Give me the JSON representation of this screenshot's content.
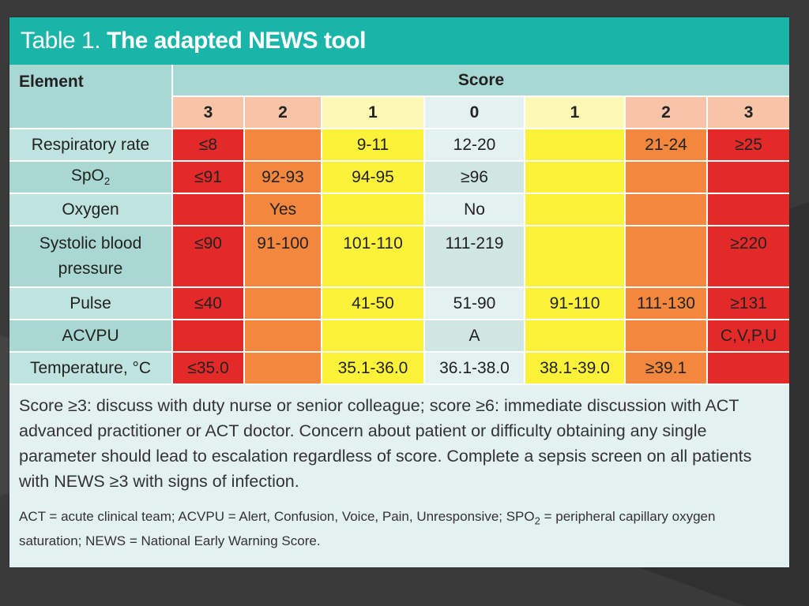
{
  "title": {
    "prefix": "Table 1.",
    "main": "The adapted NEWS tool"
  },
  "headers": {
    "element": "Element",
    "score": "Score",
    "scores": [
      "3",
      "2",
      "1",
      "0",
      "1",
      "2",
      "3"
    ]
  },
  "rows": [
    {
      "label": "Respiratory rate",
      "cells": [
        "≤8",
        "",
        "9-11",
        "12-20",
        "",
        "21-24",
        "≥25"
      ]
    },
    {
      "label_main": "SpO",
      "label_sub": "2",
      "cells": [
        "≤91",
        "92-93",
        "94-95",
        "≥96",
        "",
        "",
        ""
      ]
    },
    {
      "label": "Oxygen",
      "cells": [
        "",
        "Yes",
        "",
        "No",
        "",
        "",
        ""
      ]
    },
    {
      "label_line1": "Systolic blood",
      "label_line2": "pressure",
      "cells": [
        "≤90",
        "91-100",
        "101-110",
        "111-219",
        "",
        "",
        "≥220"
      ]
    },
    {
      "label": "Pulse",
      "cells": [
        "≤40",
        "",
        "41-50",
        "51-90",
        "91-110",
        "111-130",
        "≥131"
      ]
    },
    {
      "label": "ACVPU",
      "cells": [
        "",
        "",
        "",
        "A",
        "",
        "",
        "C,V,P,U"
      ]
    },
    {
      "label": "Temperature, °C",
      "cells": [
        "≤35.0",
        "",
        "35.1-36.0",
        "36.1-38.0",
        "38.1-39.0",
        "≥39.1",
        ""
      ]
    }
  ],
  "notes": {
    "main": "Score ≥3: discuss with duty nurse or senior colleague; score ≥6: immediate discussion with ACT advanced practitioner or ACT doctor. Concern about patient or difficulty obtaining any single parameter should lead to escalation regardless of score. Complete a sepsis screen on all patients with NEWS ≥3 with signs of infection.",
    "foot_part1": "ACT = acute clinical team; ACVPU = Alert, Confusion, Voice, Pain, Unresponsive; SPO",
    "foot_sub": "2",
    "foot_part2": " = peripheral capillary oxygen saturation; NEWS = National Early Warning Score."
  },
  "colors": {
    "teal_title": "#1ab5a9",
    "red": "#e42a28",
    "orange": "#f3873e",
    "yellow": "#fdf23a",
    "background": "#3a3a3a"
  }
}
